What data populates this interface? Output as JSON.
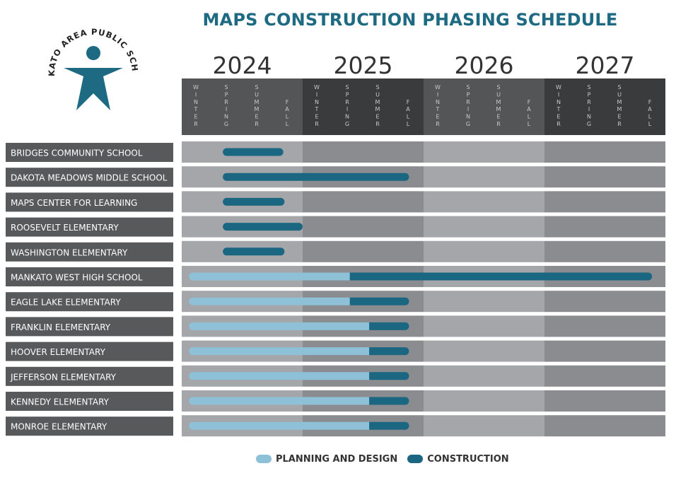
{
  "title": "MAPS CONSTRUCTION PHASING SCHEDULE",
  "logo_text": "MANKATO AREA PUBLIC SCHOOLS",
  "colors": {
    "title": "#1e6a83",
    "planning": "#8ec1d8",
    "construction": "#1b6680",
    "header_light": "#535557",
    "header_dark": "#3a3b3d",
    "band_light": "#a5a6a9",
    "band_dark": "#8b8c8f",
    "label_bg": "#57595b"
  },
  "chart_data": {
    "type": "gantt",
    "years": [
      "2024",
      "2025",
      "2026",
      "2027"
    ],
    "seasons": [
      "WINTER",
      "SPRING",
      "SUMMER",
      "FALL"
    ],
    "legend": [
      {
        "key": "planning",
        "label": "PLANNING AND DESIGN"
      },
      {
        "key": "construction",
        "label": "CONSTRUCTION"
      }
    ],
    "rows": [
      {
        "name": "BRIDGES COMMUNITY SCHOOL",
        "construction": [
          0.34,
          0.84
        ]
      },
      {
        "name": "DAKOTA MEADOWS MIDDLE SCHOOL",
        "construction": [
          0.34,
          1.88
        ]
      },
      {
        "name": "MAPS CENTER FOR LEARNING",
        "construction": [
          0.34,
          0.85
        ]
      },
      {
        "name": "ROOSEVELT ELEMENTARY",
        "construction": [
          0.34,
          1.0
        ]
      },
      {
        "name": "WASHINGTON ELEMENTARY",
        "construction": [
          0.34,
          0.85
        ]
      },
      {
        "name": "MANKATO WEST HIGH SCHOOL",
        "planning": [
          0.06,
          1.39
        ],
        "construction": [
          1.39,
          3.89
        ]
      },
      {
        "name": "EAGLE LAKE ELEMENTARY",
        "planning": [
          0.06,
          1.39
        ],
        "construction": [
          1.39,
          1.88
        ]
      },
      {
        "name": "FRANKLIN ELEMENTARY",
        "planning": [
          0.06,
          1.55
        ],
        "construction": [
          1.55,
          1.88
        ]
      },
      {
        "name": "HOOVER ELEMENTARY",
        "planning": [
          0.06,
          1.55
        ],
        "construction": [
          1.55,
          1.88
        ]
      },
      {
        "name": "JEFFERSON ELEMENTARY",
        "planning": [
          0.06,
          1.55
        ],
        "construction": [
          1.55,
          1.88
        ]
      },
      {
        "name": "KENNEDY ELEMENTARY",
        "planning": [
          0.06,
          1.55
        ],
        "construction": [
          1.55,
          1.88
        ]
      },
      {
        "name": "MONROE ELEMENTARY",
        "planning": [
          0.06,
          1.55
        ],
        "construction": [
          1.55,
          1.88
        ]
      }
    ]
  }
}
